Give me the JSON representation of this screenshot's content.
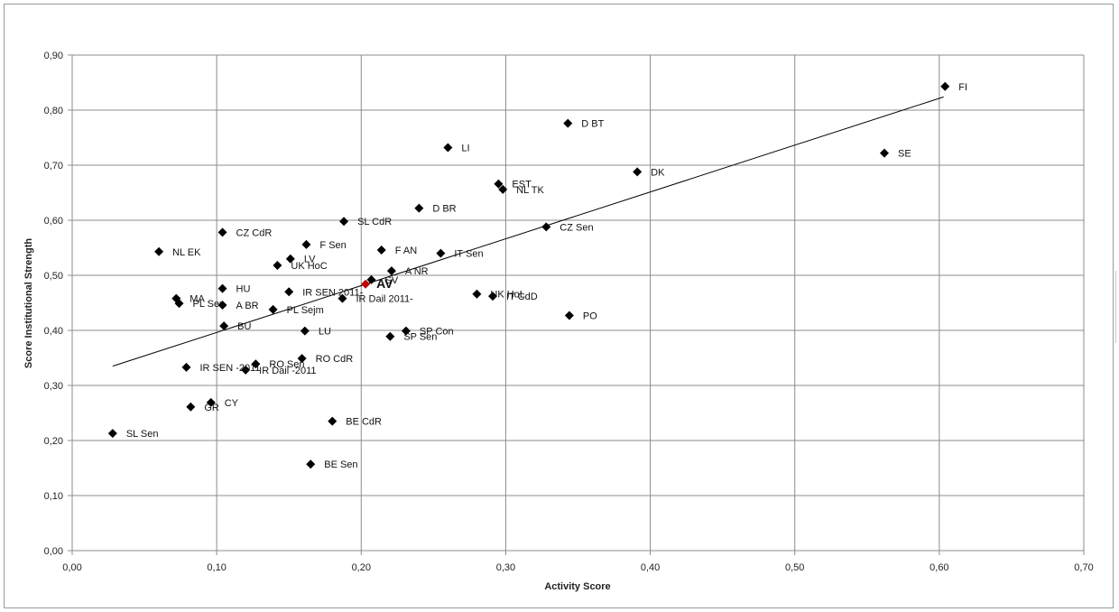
{
  "chart_data": {
    "type": "scatter",
    "title": "",
    "xlabel": "Activity Score",
    "ylabel": "Score Institutional Strength",
    "xlim": [
      0,
      0.7
    ],
    "ylim": [
      0,
      0.9
    ],
    "x_ticks": [
      "0,00",
      "0,10",
      "0,20",
      "0,30",
      "0,40",
      "0,50",
      "0,60",
      "0,70"
    ],
    "y_ticks": [
      "0,00",
      "0,10",
      "0,20",
      "0,30",
      "0,40",
      "0,50",
      "0,60",
      "0,70",
      "0,80",
      "0,90"
    ],
    "grid": true,
    "legend": "none",
    "marker_color": "#000000",
    "highlight_color": "#c00000",
    "trendline": {
      "x1": 0.028,
      "y1": 0.335,
      "x2": 0.603,
      "y2": 0.824
    },
    "points": [
      {
        "label": "FI",
        "x": 0.604,
        "y": 0.843
      },
      {
        "label": "SE",
        "x": 0.562,
        "y": 0.722
      },
      {
        "label": "D BT",
        "x": 0.343,
        "y": 0.776
      },
      {
        "label": "DK",
        "x": 0.391,
        "y": 0.688
      },
      {
        "label": "LI",
        "x": 0.26,
        "y": 0.732
      },
      {
        "label": "EST",
        "x": 0.295,
        "y": 0.666
      },
      {
        "label": "NL TK",
        "x": 0.298,
        "y": 0.656
      },
      {
        "label": "D BR",
        "x": 0.24,
        "y": 0.622
      },
      {
        "label": "CZ Sen",
        "x": 0.328,
        "y": 0.588
      },
      {
        "label": "SL CdR",
        "x": 0.188,
        "y": 0.598
      },
      {
        "label": "CZ CdR",
        "x": 0.104,
        "y": 0.578
      },
      {
        "label": "F Sen",
        "x": 0.162,
        "y": 0.556
      },
      {
        "label": "F AN",
        "x": 0.214,
        "y": 0.546
      },
      {
        "label": "IT Sen",
        "x": 0.255,
        "y": 0.54
      },
      {
        "label": "NL EK",
        "x": 0.06,
        "y": 0.543
      },
      {
        "label": "LV",
        "x": 0.151,
        "y": 0.53
      },
      {
        "label": "UK HoC",
        "x": 0.142,
        "y": 0.518
      },
      {
        "label": "A NR",
        "x": 0.221,
        "y": 0.508
      },
      {
        "label": "SV",
        "x": 0.207,
        "y": 0.492
      },
      {
        "label": "AV",
        "x": 0.203,
        "y": 0.484,
        "highlight": true
      },
      {
        "label": "IR SEN 2011-",
        "x": 0.15,
        "y": 0.47
      },
      {
        "label": "IR Dail 2011-",
        "x": 0.187,
        "y": 0.458
      },
      {
        "label": "UK HoL",
        "x": 0.28,
        "y": 0.466
      },
      {
        "label": "IT CdD",
        "x": 0.291,
        "y": 0.462
      },
      {
        "label": "HU",
        "x": 0.104,
        "y": 0.476
      },
      {
        "label": "MA",
        "x": 0.072,
        "y": 0.458
      },
      {
        "label": "PL Sen",
        "x": 0.074,
        "y": 0.449
      },
      {
        "label": "A BR",
        "x": 0.104,
        "y": 0.446
      },
      {
        "label": "PL Sejm",
        "x": 0.139,
        "y": 0.438
      },
      {
        "label": "PO",
        "x": 0.344,
        "y": 0.427
      },
      {
        "label": "BU",
        "x": 0.105,
        "y": 0.408
      },
      {
        "label": "LU",
        "x": 0.161,
        "y": 0.399
      },
      {
        "label": "SP Con",
        "x": 0.231,
        "y": 0.399
      },
      {
        "label": "SP Sen",
        "x": 0.22,
        "y": 0.389
      },
      {
        "label": "RO CdR",
        "x": 0.159,
        "y": 0.349
      },
      {
        "label": "RO Sen",
        "x": 0.127,
        "y": 0.339
      },
      {
        "label": "IR SEN -2011",
        "x": 0.079,
        "y": 0.333
      },
      {
        "label": "IR Dail -2011",
        "x": 0.12,
        "y": 0.328
      },
      {
        "label": "CY",
        "x": 0.096,
        "y": 0.269
      },
      {
        "label": "GR",
        "x": 0.082,
        "y": 0.261
      },
      {
        "label": "BE CdR",
        "x": 0.18,
        "y": 0.235
      },
      {
        "label": "SL Sen",
        "x": 0.028,
        "y": 0.213
      },
      {
        "label": "BE Sen",
        "x": 0.165,
        "y": 0.157
      }
    ]
  }
}
